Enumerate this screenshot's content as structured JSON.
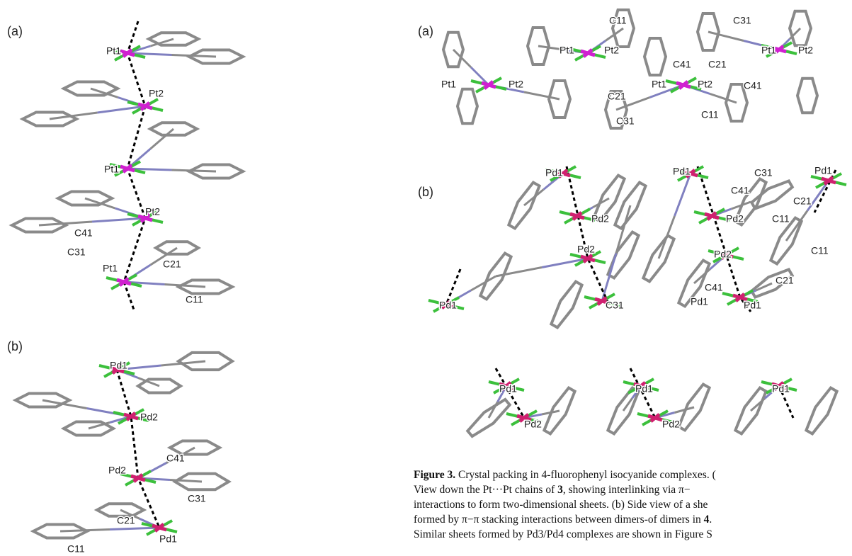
{
  "left_panel": {
    "a": {
      "label": "(a)",
      "atoms": [
        "Pt1",
        "Pt2",
        "Pt1",
        "Pt2",
        "C41",
        "C31",
        "Pt1",
        "C21",
        "C11"
      ]
    },
    "b": {
      "label": "(b)",
      "atoms": [
        "Pd1",
        "Pd2",
        "Pd2",
        "C41",
        "C31",
        "C21",
        "Pd1",
        "C11"
      ]
    }
  },
  "right_panel": {
    "a": {
      "label": "(a)",
      "atoms": [
        "C11",
        "C31",
        "Pt1",
        "Pt2",
        "C41",
        "C21",
        "Pt1",
        "Pt2",
        "Pt1",
        "Pt2",
        "C21",
        "Pt1",
        "Pt2",
        "C41",
        "C31",
        "C11"
      ]
    },
    "b": {
      "label": "(b)",
      "atoms": [
        "Pd1",
        "Pd1",
        "C31",
        "Pd1",
        "C41",
        "C21",
        "Pd2",
        "Pd2",
        "C11",
        "Pd2",
        "Pd2",
        "C11",
        "C21",
        "C41",
        "Pd1",
        "C31",
        "Pd1",
        "Pd1",
        "Pd1",
        "Pd1",
        "Pd1",
        "Pd2",
        "Pd2"
      ]
    }
  },
  "caption": {
    "label": "Figure 3.",
    "lines": [
      [
        {
          "text": "Crystal packing in 4-fluorophenyl isocyanide complexes. ("
        }
      ],
      [
        {
          "text": "View down the Pt···Pt chains of "
        },
        {
          "text": "3",
          "bold": true
        },
        {
          "text": ", showing interlinking via π−"
        }
      ],
      [
        {
          "text": "interactions to form two-dimensional sheets. (b) Side view of a she"
        }
      ],
      [
        {
          "text": "formed by π−π stacking interactions between dimers-of dimers in "
        },
        {
          "text": "4",
          "bold": true
        },
        {
          "text": "."
        }
      ],
      [
        {
          "text": "Similar sheets formed by Pd3/Pd4 complexes are shown in Figure S"
        }
      ]
    ]
  }
}
